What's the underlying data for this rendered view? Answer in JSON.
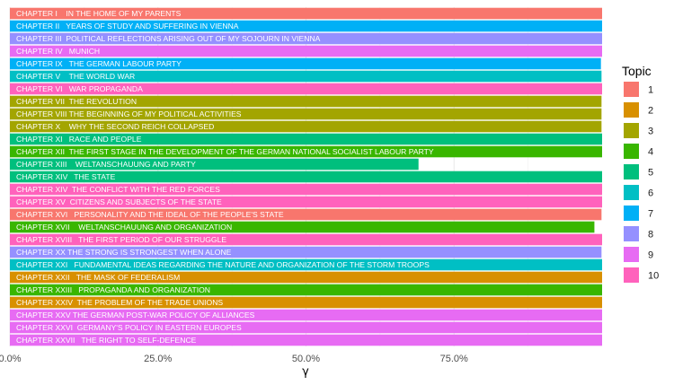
{
  "chart_data": {
    "type": "bar",
    "orientation": "horizontal",
    "xlabel": "γ",
    "x_ticks": [
      "0.0%",
      "25.0%",
      "50.0%",
      "75.0%"
    ],
    "x_tick_values": [
      0,
      0.25,
      0.5,
      0.75
    ],
    "xlim": [
      0,
      1
    ],
    "grid": true,
    "legend": {
      "title": "Topic",
      "position": "right",
      "entries": [
        {
          "label": "1",
          "color": "#F8766D"
        },
        {
          "label": "2",
          "color": "#D89000"
        },
        {
          "label": "3",
          "color": "#A3A500"
        },
        {
          "label": "4",
          "color": "#39B600"
        },
        {
          "label": "5",
          "color": "#00BF7D"
        },
        {
          "label": "6",
          "color": "#00BFC4"
        },
        {
          "label": "7",
          "color": "#00B0F6"
        },
        {
          "label": "8",
          "color": "#9590FF"
        },
        {
          "label": "9",
          "color": "#E76BF3"
        },
        {
          "label": "10",
          "color": "#FF62BC"
        }
      ]
    },
    "bars": [
      {
        "label": "CHAPTER I    IN THE HOME OF MY PARENTS",
        "value": 1.0,
        "topic": "1"
      },
      {
        "label": "CHAPTER II   YEARS OF STUDY AND SUFFERING IN VIENNA",
        "value": 1.0,
        "topic": "7"
      },
      {
        "label": "CHAPTER III  POLITICAL REFLECTIONS ARISING OUT OF MY SOJOURN IN VIENNA",
        "value": 1.0,
        "topic": "8"
      },
      {
        "label": "CHAPTER IV   MUNICH",
        "value": 1.0,
        "topic": "9"
      },
      {
        "label": "CHAPTER IX   THE GERMAN LABOUR PARTY",
        "value": 0.998,
        "topic": "7"
      },
      {
        "label": "CHAPTER V    THE WORLD WAR",
        "value": 0.999,
        "topic": "6"
      },
      {
        "label": "CHAPTER VI   WAR PROPAGANDA",
        "value": 1.0,
        "topic": "10"
      },
      {
        "label": "CHAPTER VII  THE REVOLUTION",
        "value": 0.999,
        "topic": "3"
      },
      {
        "label": "CHAPTER VIII THE BEGINNING OF MY POLITICAL ACTIVITIES",
        "value": 0.999,
        "topic": "3"
      },
      {
        "label": "CHAPTER X    WHY THE SECOND REICH COLLAPSED",
        "value": 0.999,
        "topic": "3"
      },
      {
        "label": "CHAPTER XI   RACE AND PEOPLE",
        "value": 1.0,
        "topic": "5"
      },
      {
        "label": "CHAPTER XII  THE FIRST STAGE IN THE DEVELOPMENT OF THE GERMAN NATIONAL SOCIALIST LABOUR PARTY",
        "value": 1.0,
        "topic": "4"
      },
      {
        "label": "CHAPTER XIII    WELTANSCHAUUNG AND PARTY",
        "value": 0.69,
        "topic": "5"
      },
      {
        "label": "CHAPTER XIV   THE STATE",
        "value": 1.0,
        "topic": "5"
      },
      {
        "label": "CHAPTER XIV  THE CONFLICT WITH THE RED FORCES",
        "value": 1.0,
        "topic": "10"
      },
      {
        "label": "CHAPTER XV  CITIZENS AND SUBJECTS OF THE STATE",
        "value": 1.0,
        "topic": "10"
      },
      {
        "label": "CHAPTER XVI   PERSONALITY AND THE IDEAL OF THE PEOPLE'S STATE",
        "value": 0.999,
        "topic": "1"
      },
      {
        "label": "CHAPTER XVII    WELTANSCHAUUNG AND ORGANIZATION",
        "value": 0.987,
        "topic": "4"
      },
      {
        "label": "CHAPTER XVIII   THE FIRST PERIOD OF OUR STRUGGLE",
        "value": 1.0,
        "topic": "10"
      },
      {
        "label": "CHAPTER XX THE STRONG IS STRONGEST WHEN ALONE",
        "value": 0.999,
        "topic": "8"
      },
      {
        "label": "CHAPTER XXI   FUNDAMENTAL IDEAS REGARDING THE NATURE AND ORGANIZATION OF THE STORM TROOPS",
        "value": 1.0,
        "topic": "6"
      },
      {
        "label": "CHAPTER XXII   THE MASK OF FEDERALISM",
        "value": 1.0,
        "topic": "2"
      },
      {
        "label": "CHAPTER XXIII   PROPAGANDA AND ORGANIZATION",
        "value": 1.0,
        "topic": "4"
      },
      {
        "label": "CHAPTER XXIV  THE PROBLEM OF THE TRADE UNIONS",
        "value": 1.0,
        "topic": "2"
      },
      {
        "label": "CHAPTER XXV THE GERMAN POST-WAR POLICY OF ALLIANCES",
        "value": 1.0,
        "topic": "9"
      },
      {
        "label": "CHAPTER XXVI  GERMANY'S POLICY IN EASTERN EUROPES",
        "value": 1.0,
        "topic": "9"
      },
      {
        "label": "CHAPTER XXVII   THE RIGHT TO SELF-DEFENCE",
        "value": 1.0,
        "topic": "9"
      }
    ]
  }
}
